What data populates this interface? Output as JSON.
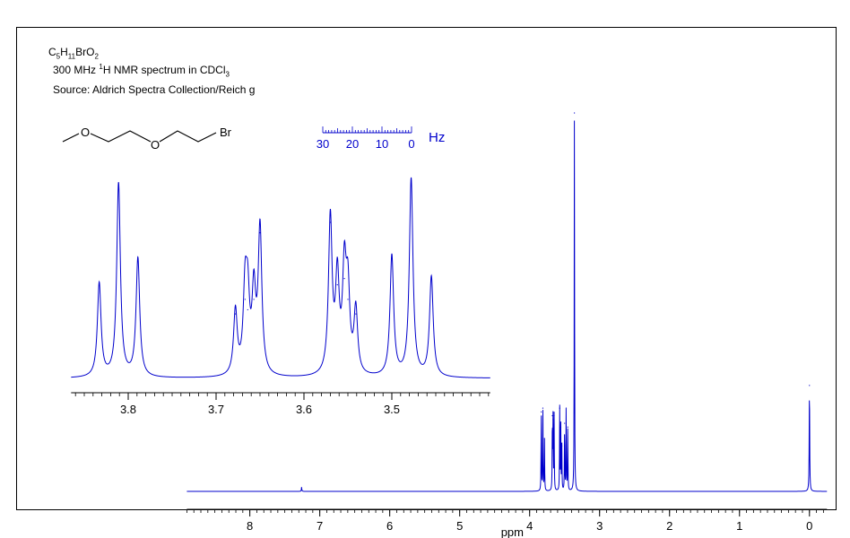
{
  "header": {
    "formula_parts": [
      "C",
      "5",
      "H",
      "11",
      "BrO",
      "2"
    ],
    "line2_parts": [
      "300 MHz ",
      "1",
      "H NMR spectrum in CDCl",
      "3"
    ],
    "line3": "Source: Aldrich Spectra Collection/Reich g"
  },
  "molecule": {
    "atoms": [
      "O",
      "O",
      "Br"
    ]
  },
  "colors": {
    "spectrum": "#0000cc",
    "frame": "#000000",
    "axis": "#000000"
  },
  "chart_data": [
    {
      "type": "line",
      "title": "",
      "xlabel": "ppm",
      "x_reversed": true,
      "xlim": [
        8.9,
        -0.25
      ],
      "ylim": [
        0,
        1
      ],
      "xticks": [
        8,
        7,
        6,
        5,
        4,
        3,
        2,
        1,
        0
      ],
      "xtick_labels": [
        "8",
        "7",
        "6",
        "5",
        "4",
        "3",
        "2",
        "1",
        "0"
      ],
      "minor_tick_step": 0.1,
      "baseline": 0.0,
      "peaks": [
        {
          "x": 7.26,
          "h": 0.01,
          "w": 0.004
        },
        {
          "x": 3.834,
          "h": 0.21,
          "w": 0.003
        },
        {
          "x": 3.811,
          "h": 0.22,
          "w": 0.003
        },
        {
          "x": 3.788,
          "h": 0.14,
          "w": 0.003
        },
        {
          "x": 3.675,
          "h": 0.2,
          "w": 0.003
        },
        {
          "x": 3.665,
          "h": 0.19,
          "w": 0.003
        },
        {
          "x": 3.65,
          "h": 0.2,
          "w": 0.003
        },
        {
          "x": 3.57,
          "h": 0.22,
          "w": 0.003
        },
        {
          "x": 3.555,
          "h": 0.17,
          "w": 0.003
        },
        {
          "x": 3.54,
          "h": 0.12,
          "w": 0.003
        },
        {
          "x": 3.5,
          "h": 0.18,
          "w": 0.003
        },
        {
          "x": 3.478,
          "h": 0.22,
          "w": 0.003
        },
        {
          "x": 3.455,
          "h": 0.17,
          "w": 0.003
        },
        {
          "x": 3.36,
          "h": 1.0,
          "w": 0.003
        },
        {
          "x": 0.0,
          "h": 0.28,
          "w": 0.004
        }
      ]
    },
    {
      "type": "line",
      "title": "",
      "xlabel": "",
      "x_reversed": true,
      "xlim": [
        3.865,
        3.388
      ],
      "ylim": [
        0,
        1
      ],
      "xticks": [
        3.8,
        3.7,
        3.6,
        3.5
      ],
      "xtick_labels": [
        "3.8",
        "3.7",
        "3.6",
        "3.5"
      ],
      "minor_tick_step": 0.01,
      "baseline": 0.0,
      "peaks": [
        {
          "x": 3.833,
          "h": 0.45,
          "w": 0.0025
        },
        {
          "x": 3.811,
          "h": 0.93,
          "w": 0.0025
        },
        {
          "x": 3.789,
          "h": 0.57,
          "w": 0.0025
        },
        {
          "x": 3.678,
          "h": 0.31,
          "w": 0.0025
        },
        {
          "x": 3.667,
          "h": 0.38,
          "w": 0.0025
        },
        {
          "x": 3.664,
          "h": 0.33,
          "w": 0.0025
        },
        {
          "x": 3.657,
          "h": 0.38,
          "w": 0.0025
        },
        {
          "x": 3.65,
          "h": 0.7,
          "w": 0.0025
        },
        {
          "x": 3.57,
          "h": 0.75,
          "w": 0.0025
        },
        {
          "x": 3.562,
          "h": 0.45,
          "w": 0.0025
        },
        {
          "x": 3.554,
          "h": 0.48,
          "w": 0.0025
        },
        {
          "x": 3.55,
          "h": 0.38,
          "w": 0.0025
        },
        {
          "x": 3.541,
          "h": 0.31,
          "w": 0.0025
        },
        {
          "x": 3.5,
          "h": 0.58,
          "w": 0.0025
        },
        {
          "x": 3.478,
          "h": 0.95,
          "w": 0.0025
        },
        {
          "x": 3.455,
          "h": 0.48,
          "w": 0.0025
        }
      ]
    }
  ],
  "hz_scale": {
    "unit": "Hz",
    "labels": [
      "30",
      "20",
      "10",
      "0"
    ],
    "max_hz": 30
  }
}
